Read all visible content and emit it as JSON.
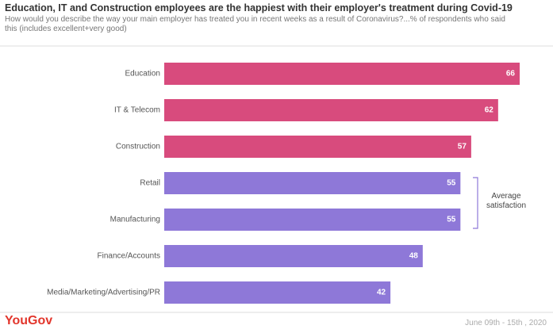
{
  "chart_data": {
    "type": "hbar",
    "title": "Education, IT and Construction employees are the happiest with their employer's treatment during Covid-19",
    "subtitle": "How would you describe the way your main employer has treated you in recent weeks as a result of Coronavirus?...% of respondents who said this (includes  excellent+very good)",
    "categories": [
      "Education",
      "IT & Telecom",
      "Construction",
      "Retail",
      "Manufacturing",
      "Finance/Accounts",
      "Media/Marketing/Advertising/PR"
    ],
    "values": [
      66,
      62,
      57,
      55,
      55,
      48,
      42
    ],
    "colors": [
      "#d84b7d",
      "#d84b7d",
      "#d84b7d",
      "#8e78d8",
      "#8e78d8",
      "#8e78d8",
      "#8e78d8"
    ],
    "annotation": "Average satisfaction",
    "source": "YouGov",
    "date_range": "June 09th - 15th , 2020"
  }
}
